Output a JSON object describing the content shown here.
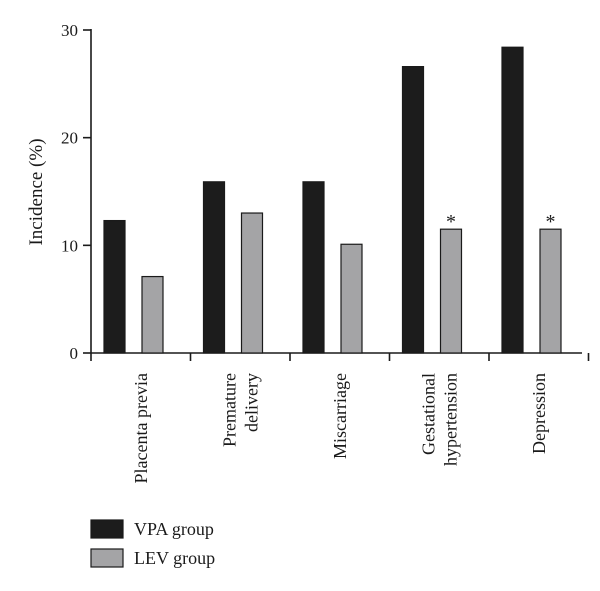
{
  "chart_data": {
    "type": "bar",
    "title": "",
    "xlabel": "",
    "ylabel": "Incidence (%)",
    "ylim": [
      0,
      30
    ],
    "yticks": [
      "0",
      "10",
      "20",
      "30"
    ],
    "grid": false,
    "legend_position": "bottom-left",
    "categories": [
      [
        "Placenta previa"
      ],
      [
        "Premature",
        "delivery"
      ],
      [
        "Miscarriage"
      ],
      [
        "Gestational",
        "hypertension"
      ],
      [
        "Depression"
      ]
    ],
    "series": [
      {
        "name": "VPA group",
        "color": "#1c1c1c",
        "values": [
          12.3,
          15.9,
          15.9,
          26.6,
          28.4
        ]
      },
      {
        "name": "LEV group",
        "color": "#a4a4a6",
        "values": [
          7.1,
          13.0,
          10.1,
          11.5,
          11.5
        ]
      }
    ],
    "annotations": [
      {
        "category_index": 3,
        "series_index": 1,
        "text": "*"
      },
      {
        "category_index": 4,
        "series_index": 1,
        "text": "*"
      }
    ]
  }
}
